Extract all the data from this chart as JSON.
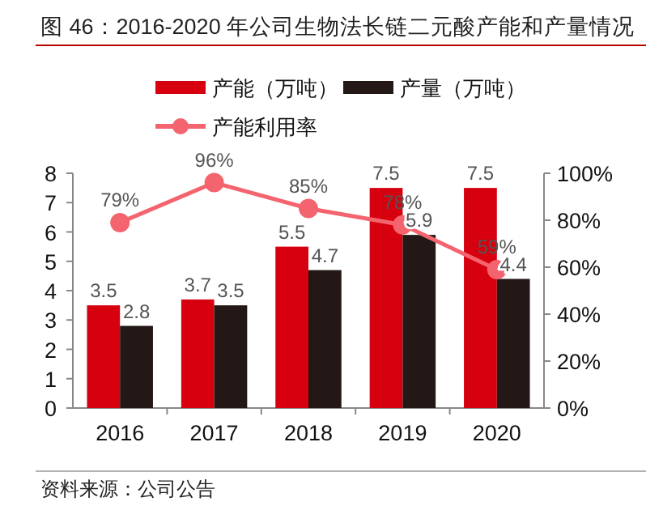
{
  "chart_data": {
    "type": "bar",
    "title": "图 46：2016-2020 年公司生物法长链二元酸产能和产量情况",
    "categories": [
      "2016",
      "2017",
      "2018",
      "2019",
      "2020"
    ],
    "series": [
      {
        "name": "产能（万吨）",
        "color": "#d7000f",
        "values": [
          3.5,
          3.7,
          5.5,
          7.5,
          7.5
        ]
      },
      {
        "name": "产量（万吨）",
        "color": "#231815",
        "values": [
          2.8,
          3.5,
          4.7,
          5.9,
          4.4
        ]
      },
      {
        "name": "产能利用率",
        "type": "line",
        "axis": "y2",
        "color": "#f4646e",
        "marker": "circle",
        "values": [
          79,
          96,
          85,
          78,
          59
        ],
        "value_labels": [
          "79%",
          "96%",
          "85%",
          "78%",
          "59%"
        ]
      }
    ],
    "ylim": [
      0,
      8
    ],
    "yticks": [
      0,
      1,
      2,
      3,
      4,
      5,
      6,
      7,
      8
    ],
    "y2lim": [
      0,
      100
    ],
    "y2ticks": [
      {
        "value": 0,
        "label": "0%"
      },
      {
        "value": 20,
        "label": "20%"
      },
      {
        "value": 40,
        "label": "40%"
      },
      {
        "value": 60,
        "label": "60%"
      },
      {
        "value": 80,
        "label": "80%"
      },
      {
        "value": 100,
        "label": "100%"
      }
    ],
    "data_labels": true,
    "legend": "top",
    "grid": false,
    "annotations": [
      "资料来源：公司公告"
    ]
  }
}
